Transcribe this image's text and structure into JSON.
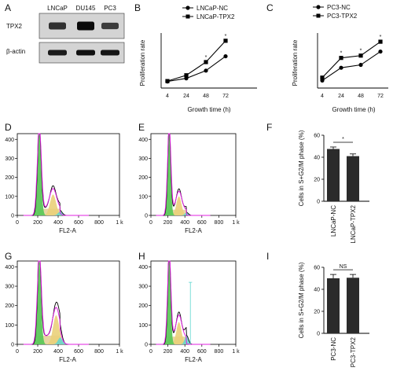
{
  "panels": {
    "A": "A",
    "B": "B",
    "C": "C",
    "D": "D",
    "E": "E",
    "F": "F",
    "G": "G",
    "H": "H",
    "I": "I"
  },
  "blot": {
    "lanes": [
      "LNCaP",
      "DU145",
      "PC3"
    ],
    "rows": [
      {
        "label": "TPX2",
        "intensity": [
          0.65,
          1.0,
          0.55
        ]
      },
      {
        "label": "β-actin",
        "intensity": [
          0.85,
          0.95,
          0.9
        ]
      }
    ]
  },
  "chart_data": [
    {
      "id": "B",
      "type": "line",
      "xlabel": "Growth time (h)",
      "ylabel": "Proliferation rate",
      "categories": [
        "4",
        "24",
        "48",
        "72"
      ],
      "series": [
        {
          "name": "LNCaP-NC",
          "marker": "circle",
          "values": [
            0.17,
            0.25,
            0.45,
            0.82
          ]
        },
        {
          "name": "LNCaP-TPX2",
          "marker": "square",
          "values": [
            0.18,
            0.33,
            0.67,
            1.22
          ]
        }
      ],
      "sig_marks": [
        "*",
        "*"
      ]
    },
    {
      "id": "C",
      "type": "line",
      "xlabel": "Growth time (h)",
      "ylabel": "Proliferation rate",
      "categories": [
        "4",
        "24",
        "48",
        "72"
      ],
      "series": [
        {
          "name": "PC3-NC",
          "marker": "circle",
          "values": [
            0.13,
            0.35,
            0.4,
            0.63
          ]
        },
        {
          "name": "PC3-TPX2",
          "marker": "square",
          "values": [
            0.18,
            0.52,
            0.56,
            0.8
          ]
        }
      ],
      "sig_marks": [
        "*",
        "*",
        "*"
      ]
    },
    {
      "id": "F",
      "type": "bar",
      "ylabel": "Cells in S+G2/M phase (%)",
      "categories": [
        "LNCaP-NC",
        "LNCaP-TPX2"
      ],
      "values": [
        47.5,
        41.0
      ],
      "errors": [
        1.8,
        2.0
      ],
      "yticks": [
        "0",
        "20",
        "40",
        "60"
      ],
      "ylim": [
        0,
        60
      ],
      "sig": "*"
    },
    {
      "id": "I",
      "type": "bar",
      "ylabel": "Cells in S+G2/M phase (%)",
      "categories": [
        "PC3-NC",
        "PC3-TPX2"
      ],
      "values": [
        50.0,
        50.5
      ],
      "errors": [
        3.5,
        3.0
      ],
      "yticks": [
        "0",
        "20",
        "40",
        "60"
      ],
      "ylim": [
        0,
        60
      ],
      "sig": "NS"
    }
  ],
  "flow": {
    "xlabel": "FL2-A",
    "xticks": [
      "0",
      "200",
      "400",
      "600",
      "800",
      "1 k"
    ],
    "yticks": [
      "0",
      "100",
      "200",
      "300",
      "400"
    ]
  },
  "colors": {
    "g1": "#5cc85a",
    "s": "#e5d29a",
    "g2": "#ead07a",
    "fit": "#e020e0",
    "sub": "#5fd6d0"
  }
}
